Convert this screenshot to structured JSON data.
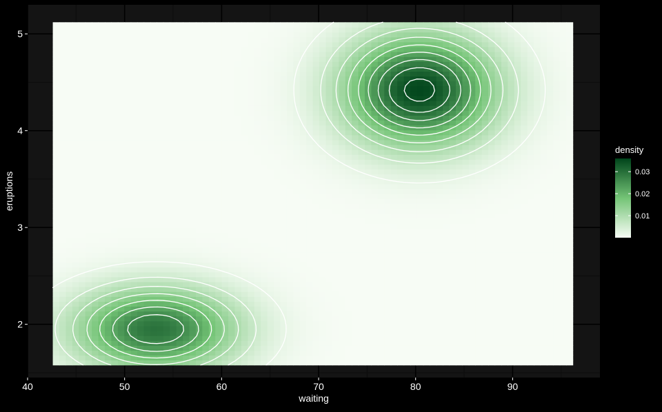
{
  "chart_data": {
    "type": "heatmap",
    "title": "",
    "xlabel": "waiting",
    "ylabel": "eruptions",
    "xlim": [
      40,
      99
    ],
    "ylim": [
      1.45,
      5.3
    ],
    "x_ticks": [
      40,
      50,
      60,
      70,
      80,
      90
    ],
    "y_ticks": [
      2,
      3,
      4,
      5
    ],
    "grid": true,
    "raster_extent": {
      "x": [
        42.6,
        96.2
      ],
      "y": [
        1.58,
        5.12
      ]
    },
    "legend": {
      "title": "density",
      "placement": "right",
      "range": [
        0.0,
        0.036
      ],
      "breaks": [
        0.01,
        0.02,
        0.03
      ],
      "labels": [
        "0.01",
        "0.02",
        "0.03"
      ]
    },
    "colorscale": {
      "low": "#f7fcf5",
      "mid": "#74c476",
      "high": "#00441b"
    },
    "contour_color": "#ffffff",
    "contour_levels": [
      0.002,
      0.006,
      0.01,
      0.014,
      0.018,
      0.022,
      0.026,
      0.03,
      0.034
    ],
    "density_components": [
      {
        "mean_x": 80.4,
        "mean_y": 4.42,
        "sd_x": 5.4,
        "sd_y": 0.4,
        "peak": 0.0355
      },
      {
        "mean_x": 53.2,
        "mean_y": 1.95,
        "sd_x": 5.8,
        "sd_y": 0.3,
        "peak": 0.0295
      }
    ]
  },
  "colors": {
    "page_background": "#000000",
    "panel_background": "#141414",
    "grid_major": "#000000",
    "grid_minor": "#0c0c0c",
    "text": "#ffffff"
  }
}
